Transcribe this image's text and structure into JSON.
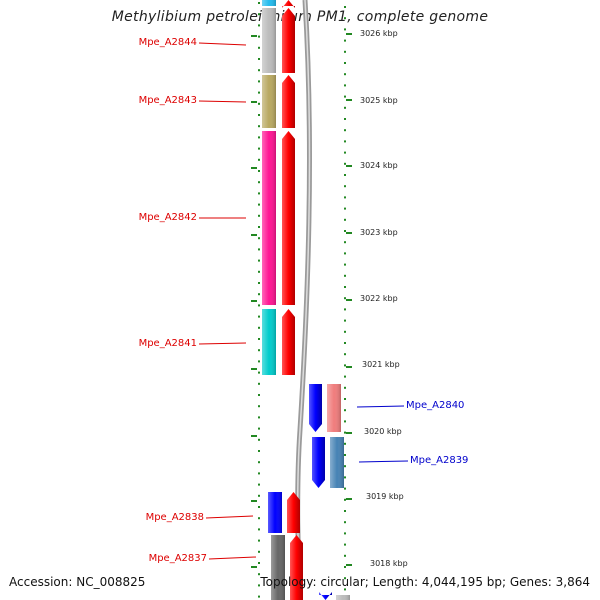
{
  "title": "Methylibium petroleiphilum PM1, complete genome",
  "footer": {
    "accession": "Accession: NC_008825",
    "summary": "Topology: circular; Length: 4,044,195 bp; Genes: 3,864"
  },
  "colors": {
    "forward_strand": "#ff0000",
    "reverse_strand": "#0000ff",
    "label_forward": "#dd0000",
    "label_reverse": "#0000cc",
    "backbone": "#8a8a8a",
    "tick": "#228822"
  },
  "map": {
    "position_range_kbp": [
      3017.5,
      3026.5
    ],
    "position_ticks_kbp": [
      "3026 kbp",
      "3025 kbp",
      "3024 kbp",
      "3023 kbp",
      "3022 kbp",
      "3021 kbp",
      "3020 kbp",
      "3019 kbp",
      "3018 kbp"
    ],
    "genes": [
      {
        "name": "",
        "strand": "forward",
        "cog_color": "#22bbee"
      },
      {
        "name": "Mpe_A2844",
        "strand": "forward",
        "cog_color": "#bbbbbb"
      },
      {
        "name": "Mpe_A2843",
        "strand": "forward",
        "cog_color": "#b8a860"
      },
      {
        "name": "Mpe_A2842",
        "strand": "forward",
        "cog_color": "#ff1493"
      },
      {
        "name": "Mpe_A2841",
        "strand": "forward",
        "cog_color": "#00cccc"
      },
      {
        "name": "Mpe_A2840",
        "strand": "reverse",
        "cog_color": "#f07c7c"
      },
      {
        "name": "Mpe_A2839",
        "strand": "reverse",
        "cog_color": "#4682b4"
      },
      {
        "name": "Mpe_A2838",
        "strand": "forward",
        "cog_color": "#0000ff"
      },
      {
        "name": "Mpe_A2837",
        "strand": "forward",
        "cog_color": "#666666"
      },
      {
        "name": "",
        "strand": "reverse",
        "cog_color": "#bbbbbb"
      }
    ]
  }
}
